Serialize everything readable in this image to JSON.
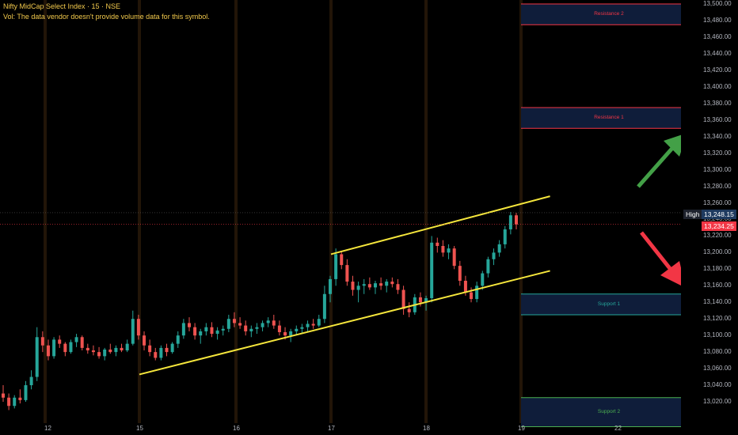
{
  "header": {
    "title": "Nifty MidCap Select Index · 15 · NSE",
    "volume_note": "Vol: The data vendor doesn't provide volume data for this symbol."
  },
  "chart_data": {
    "type": "candlestick",
    "symbol": "Nifty MidCap Select Index",
    "interval": "15",
    "exchange": "NSE",
    "x_ticks": [
      "12",
      "15",
      "16",
      "17",
      "18",
      "19",
      "22"
    ],
    "y_ticks": [
      "13,500.00",
      "13,480.00",
      "13,460.00",
      "13,440.00",
      "13,420.00",
      "13,400.00",
      "13,380.00",
      "13,360.00",
      "13,340.00",
      "13,320.00",
      "13,300.00",
      "13,280.00",
      "13,260.00",
      "13,240.00",
      "13,220.00",
      "13,200.00",
      "13,180.00",
      "13,160.00",
      "13,140.00",
      "13,120.00",
      "13,100.00",
      "13,080.00",
      "13,060.00",
      "13,040.00",
      "13,020.00"
    ],
    "ylim": [
      13010,
      13500
    ],
    "grid": false,
    "high_label": "High",
    "high_value": "13,248.15",
    "last_value": "13,234.25",
    "zones": [
      {
        "name": "Resistance 2",
        "low": 13475,
        "high": 13500,
        "line_color": "#f23645"
      },
      {
        "name": "Resistance 1",
        "low": 13350,
        "high": 13375,
        "line_color": "#f23645"
      },
      {
        "name": "Support 1",
        "low": 13125,
        "high": 13150,
        "line_color": "#26a69a"
      },
      {
        "name": "Support 2",
        "low": 12990,
        "high": 13025,
        "line_color": "#4caf50"
      }
    ],
    "channel": {
      "upper": [
        [
          "17",
          13198
        ],
        [
          "19.9",
          13268
        ]
      ],
      "lower": [
        [
          "15",
          13053
        ],
        [
          "19.9",
          13178
        ]
      ]
    },
    "arrows": [
      {
        "direction": "up",
        "color": "#43a047"
      },
      {
        "direction": "down",
        "color": "#f23645"
      }
    ],
    "candles": [
      [
        13030,
        13040,
        13020,
        13025
      ],
      [
        13025,
        13030,
        13010,
        13015
      ],
      [
        13015,
        13028,
        13012,
        13025
      ],
      [
        13025,
        13035,
        13018,
        13022
      ],
      [
        13022,
        13045,
        13020,
        13040
      ],
      [
        13040,
        13058,
        13035,
        13050
      ],
      [
        13050,
        13110,
        13045,
        13098
      ],
      [
        13098,
        13105,
        13080,
        13088
      ],
      [
        13088,
        13095,
        13070,
        13075
      ],
      [
        13075,
        13098,
        13072,
        13095
      ],
      [
        13095,
        13100,
        13085,
        13090
      ],
      [
        13090,
        13092,
        13075,
        13080
      ],
      [
        13080,
        13095,
        13078,
        13092
      ],
      [
        13092,
        13102,
        13086,
        13098
      ],
      [
        13098,
        13100,
        13082,
        13085
      ],
      [
        13085,
        13090,
        13078,
        13082
      ],
      [
        13082,
        13088,
        13076,
        13080
      ],
      [
        13080,
        13086,
        13072,
        13075
      ],
      [
        13075,
        13085,
        13070,
        13083
      ],
      [
        13083,
        13090,
        13078,
        13080
      ],
      [
        13080,
        13088,
        13075,
        13085
      ],
      [
        13085,
        13090,
        13080,
        13082
      ],
      [
        13082,
        13095,
        13080,
        13090
      ],
      [
        13090,
        13130,
        13088,
        13120
      ],
      [
        13120,
        13125,
        13095,
        13100
      ],
      [
        13100,
        13105,
        13082,
        13088
      ],
      [
        13088,
        13095,
        13075,
        13080
      ],
      [
        13080,
        13085,
        13070,
        13073
      ],
      [
        13073,
        13088,
        13070,
        13085
      ],
      [
        13085,
        13090,
        13075,
        13080
      ],
      [
        13080,
        13092,
        13078,
        13090
      ],
      [
        13090,
        13105,
        13085,
        13100
      ],
      [
        13100,
        13120,
        13096,
        13115
      ],
      [
        13115,
        13122,
        13105,
        13110
      ],
      [
        13110,
        13115,
        13095,
        13100
      ],
      [
        13100,
        13108,
        13090,
        13105
      ],
      [
        13105,
        13115,
        13100,
        13110
      ],
      [
        13110,
        13116,
        13098,
        13102
      ],
      [
        13102,
        13110,
        13095,
        13106
      ],
      [
        13106,
        13112,
        13100,
        13108
      ],
      [
        13108,
        13125,
        13104,
        13120
      ],
      [
        13120,
        13128,
        13110,
        13115
      ],
      [
        13115,
        13122,
        13108,
        13112
      ],
      [
        13112,
        13118,
        13100,
        13105
      ],
      [
        13105,
        13112,
        13098,
        13108
      ],
      [
        13108,
        13115,
        13102,
        13110
      ],
      [
        13110,
        13118,
        13105,
        13115
      ],
      [
        13115,
        13122,
        13110,
        13118
      ],
      [
        13118,
        13125,
        13108,
        13112
      ],
      [
        13112,
        13118,
        13100,
        13104
      ],
      [
        13104,
        13110,
        13095,
        13100
      ],
      [
        13100,
        13108,
        13092,
        13105
      ],
      [
        13105,
        13112,
        13100,
        13108
      ],
      [
        13108,
        13114,
        13102,
        13110
      ],
      [
        13110,
        13118,
        13104,
        13114
      ],
      [
        13114,
        13120,
        13108,
        13112
      ],
      [
        13112,
        13125,
        13110,
        13120
      ],
      [
        13120,
        13160,
        13115,
        13150
      ],
      [
        13150,
        13172,
        13140,
        13168
      ],
      [
        13168,
        13205,
        13160,
        13198
      ],
      [
        13198,
        13202,
        13180,
        13185
      ],
      [
        13185,
        13192,
        13160,
        13165
      ],
      [
        13165,
        13172,
        13148,
        13155
      ],
      [
        13155,
        13165,
        13140,
        13160
      ],
      [
        13160,
        13168,
        13150,
        13162
      ],
      [
        13162,
        13170,
        13155,
        13158
      ],
      [
        13158,
        13166,
        13150,
        13163
      ],
      [
        13163,
        13170,
        13155,
        13160
      ],
      [
        13160,
        13168,
        13152,
        13165
      ],
      [
        13165,
        13170,
        13158,
        13162
      ],
      [
        13162,
        13168,
        13150,
        13155
      ],
      [
        13155,
        13160,
        13125,
        13132
      ],
      [
        13132,
        13140,
        13122,
        13128
      ],
      [
        13128,
        13150,
        13125,
        13146
      ],
      [
        13146,
        13152,
        13135,
        13140
      ],
      [
        13140,
        13148,
        13130,
        13145
      ],
      [
        13145,
        13220,
        13140,
        13212
      ],
      [
        13212,
        13218,
        13200,
        13208
      ],
      [
        13208,
        13215,
        13195,
        13200
      ],
      [
        13200,
        13210,
        13192,
        13205
      ],
      [
        13205,
        13208,
        13180,
        13184
      ],
      [
        13184,
        13190,
        13160,
        13166
      ],
      [
        13166,
        13172,
        13148,
        13152
      ],
      [
        13152,
        13158,
        13140,
        13144
      ],
      [
        13144,
        13165,
        13140,
        13160
      ],
      [
        13160,
        13178,
        13155,
        13175
      ],
      [
        13175,
        13195,
        13170,
        13192
      ],
      [
        13192,
        13205,
        13185,
        13200
      ],
      [
        13200,
        13215,
        13195,
        13210
      ],
      [
        13210,
        13232,
        13205,
        13228
      ],
      [
        13228,
        13249,
        13222,
        13245
      ],
      [
        13245,
        13248,
        13228,
        13234
      ]
    ]
  }
}
